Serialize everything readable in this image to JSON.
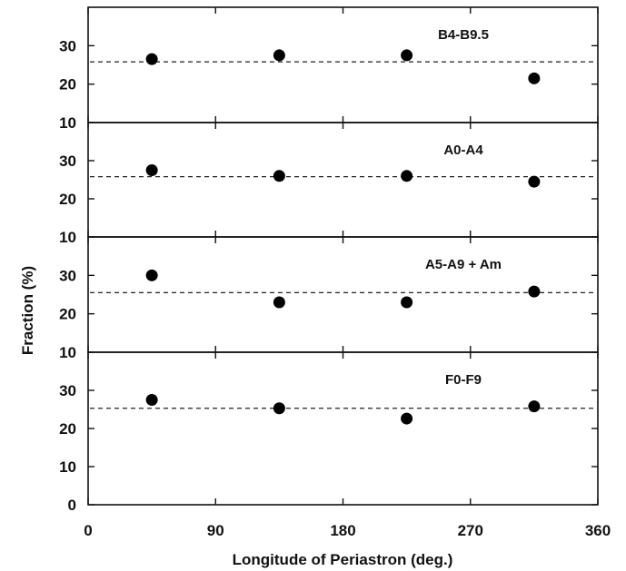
{
  "chart_data": {
    "type": "scatter",
    "xlabel": "Longitude of Periastron (deg.)",
    "ylabel": "Fraction (%)",
    "xlim": [
      0,
      360
    ],
    "x_ticks": [
      "0",
      "90",
      "180",
      "270",
      "360"
    ],
    "x_values": [
      45,
      135,
      225,
      315
    ],
    "reference_line_style": "dashed",
    "grid": false,
    "legend": "none",
    "panels": [
      {
        "label": "B4-B9.5",
        "ylim": [
          10,
          40
        ],
        "y_ticks": [
          "10",
          "20",
          "30"
        ],
        "values": [
          26.5,
          27.5,
          27.5,
          21.5
        ],
        "reference": 25.8
      },
      {
        "label": "A0-A4",
        "ylim": [
          10,
          40
        ],
        "y_ticks": [
          "10",
          "20",
          "30"
        ],
        "values": [
          27.5,
          26,
          26,
          24.5
        ],
        "reference": 25.8
      },
      {
        "label": "A5-A9 + Am",
        "ylim": [
          10,
          40
        ],
        "y_ticks": [
          "10",
          "20",
          "30"
        ],
        "values": [
          30,
          23,
          23,
          25.8
        ],
        "reference": 25.5
      },
      {
        "label": "F0-F9",
        "ylim": [
          0,
          40
        ],
        "y_ticks": [
          "0",
          "10",
          "20",
          "30"
        ],
        "values": [
          27.5,
          25.3,
          22.6,
          25.8
        ],
        "reference": 25.3
      }
    ]
  }
}
